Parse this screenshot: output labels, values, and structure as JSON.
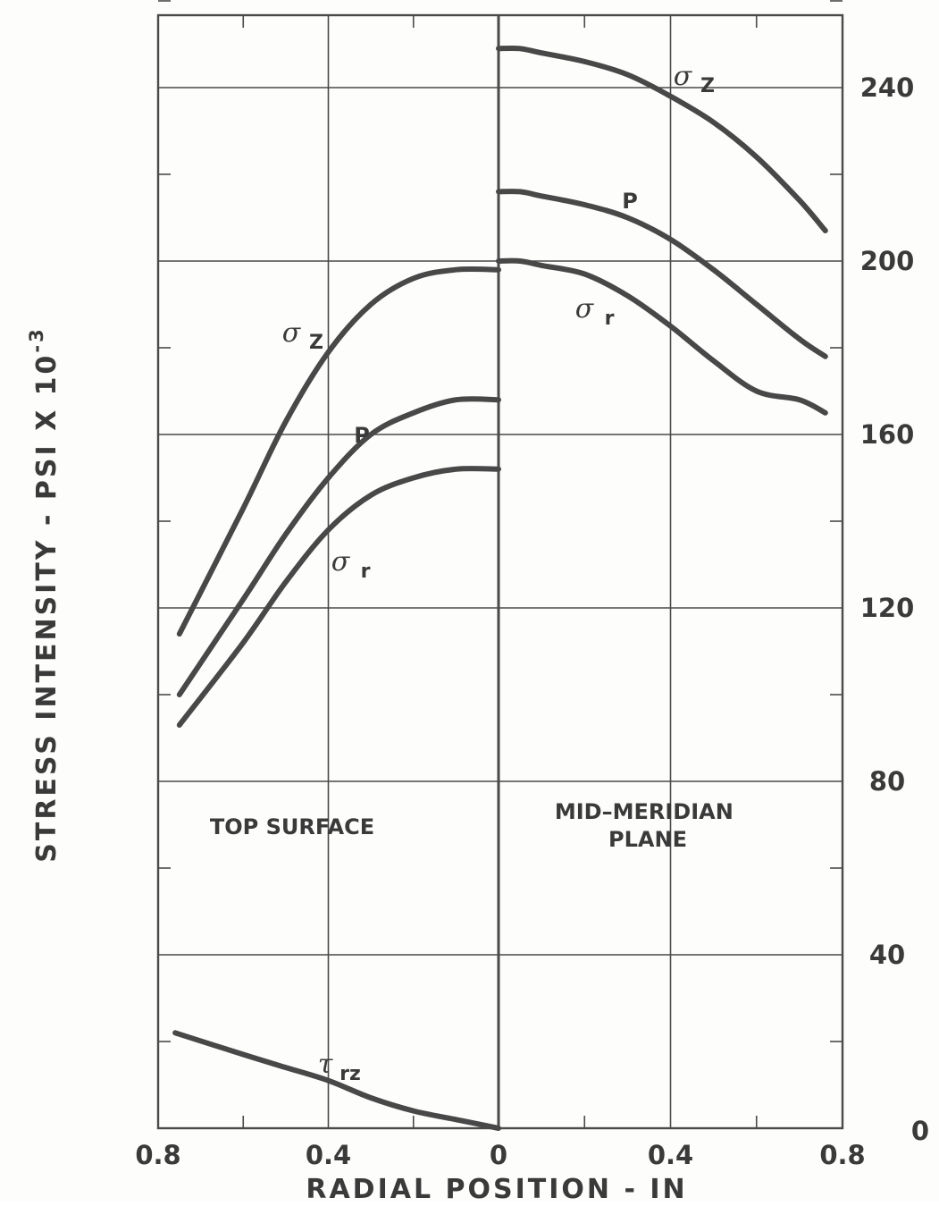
{
  "chart_data": {
    "type": "line",
    "ylabel": "STRESS INTENSITY - PSI X 10",
    "ylabel_exp": "-3",
    "xlabel": "RADIAL POSITION - IN",
    "xlim": [
      0,
      0.8
    ],
    "ylim": [
      0,
      260
    ],
    "grid": true,
    "x_ticks": [
      "0.8",
      "0.4",
      "0",
      "0.4",
      "0.8"
    ],
    "y_ticks": [
      "0",
      "40",
      "80",
      "120",
      "160",
      "200",
      "240"
    ],
    "panels": [
      {
        "name": "TOP SURFACE",
        "orientation": "x increases to the left",
        "series": [
          {
            "label": "σ",
            "sub": "Z",
            "x": [
              0.75,
              0.6,
              0.5,
              0.4,
              0.3,
              0.2,
              0.1,
              0
            ],
            "y": [
              114,
              143,
              163,
              179,
              190,
              196,
              198,
              198
            ]
          },
          {
            "label": "P",
            "sub": "",
            "x": [
              0.75,
              0.6,
              0.5,
              0.4,
              0.3,
              0.2,
              0.1,
              0
            ],
            "y": [
              100,
              122,
              137,
              150,
              160,
              165,
              168,
              168
            ]
          },
          {
            "label": "σ",
            "sub": "r",
            "x": [
              0.75,
              0.6,
              0.5,
              0.4,
              0.3,
              0.2,
              0.1,
              0
            ],
            "y": [
              93,
              112,
              126,
              138,
              146,
              150,
              152,
              152
            ]
          },
          {
            "label": "τ",
            "sub": "rz",
            "x": [
              0.76,
              0.6,
              0.5,
              0.4,
              0.3,
              0.2,
              0.1,
              0
            ],
            "y": [
              22,
              17,
              14,
              11,
              7,
              4,
              2,
              0
            ]
          }
        ]
      },
      {
        "name": "MID-MERIDIAN PLANE",
        "orientation": "x increases to the right",
        "series": [
          {
            "label": "σ",
            "sub": "Z",
            "x": [
              0,
              0.05,
              0.1,
              0.2,
              0.3,
              0.4,
              0.5,
              0.6,
              0.7,
              0.76
            ],
            "y": [
              249,
              249,
              248,
              246,
              243,
              238,
              232,
              224,
              214,
              207
            ]
          },
          {
            "label": "P",
            "sub": "",
            "x": [
              0,
              0.05,
              0.1,
              0.2,
              0.3,
              0.4,
              0.5,
              0.6,
              0.7,
              0.76
            ],
            "y": [
              216,
              216,
              215,
              213,
              210,
              205,
              198,
              190,
              182,
              178
            ]
          },
          {
            "label": "σ",
            "sub": "r",
            "x": [
              0,
              0.05,
              0.1,
              0.2,
              0.3,
              0.4,
              0.5,
              0.6,
              0.7,
              0.76
            ],
            "y": [
              200,
              200,
              199,
              197,
              192,
              185,
              177,
              170,
              168,
              165
            ]
          }
        ]
      }
    ]
  }
}
